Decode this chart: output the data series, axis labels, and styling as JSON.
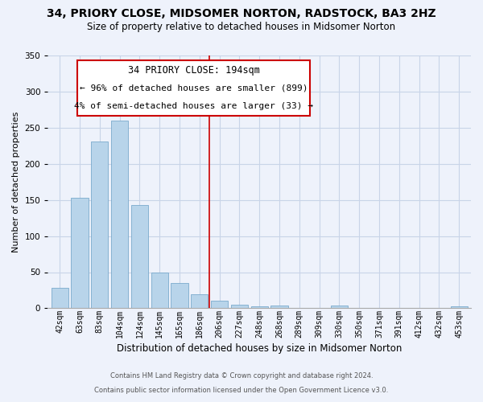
{
  "title": "34, PRIORY CLOSE, MIDSOMER NORTON, RADSTOCK, BA3 2HZ",
  "subtitle": "Size of property relative to detached houses in Midsomer Norton",
  "xlabel": "Distribution of detached houses by size in Midsomer Norton",
  "ylabel": "Number of detached properties",
  "bar_labels": [
    "42sqm",
    "63sqm",
    "83sqm",
    "104sqm",
    "124sqm",
    "145sqm",
    "165sqm",
    "186sqm",
    "206sqm",
    "227sqm",
    "248sqm",
    "268sqm",
    "289sqm",
    "309sqm",
    "330sqm",
    "350sqm",
    "371sqm",
    "391sqm",
    "412sqm",
    "432sqm",
    "453sqm"
  ],
  "bar_values": [
    28,
    153,
    231,
    260,
    143,
    49,
    35,
    19,
    11,
    5,
    3,
    4,
    0,
    0,
    4,
    0,
    0,
    0,
    0,
    0,
    3
  ],
  "bar_color": "#b8d4ea",
  "bar_edge_color": "#7aaacc",
  "ylim": [
    0,
    350
  ],
  "yticks": [
    0,
    50,
    100,
    150,
    200,
    250,
    300,
    350
  ],
  "vline_x": 7.5,
  "vline_color": "#cc0000",
  "annotation_title": "34 PRIORY CLOSE: 194sqm",
  "annotation_line1": "← 96% of detached houses are smaller (899)",
  "annotation_line2": "4% of semi-detached houses are larger (33) →",
  "annotation_box_color": "#cc0000",
  "footnote1": "Contains HM Land Registry data © Crown copyright and database right 2024.",
  "footnote2": "Contains public sector information licensed under the Open Government Licence v3.0.",
  "bg_color": "#eef2fb",
  "grid_color": "#c8d4e8",
  "title_fontsize": 10,
  "subtitle_fontsize": 8.5,
  "xlabel_fontsize": 8.5,
  "ylabel_fontsize": 8,
  "tick_fontsize": 7,
  "annot_title_fontsize": 8.5,
  "annot_text_fontsize": 8,
  "footnote_fontsize": 6
}
